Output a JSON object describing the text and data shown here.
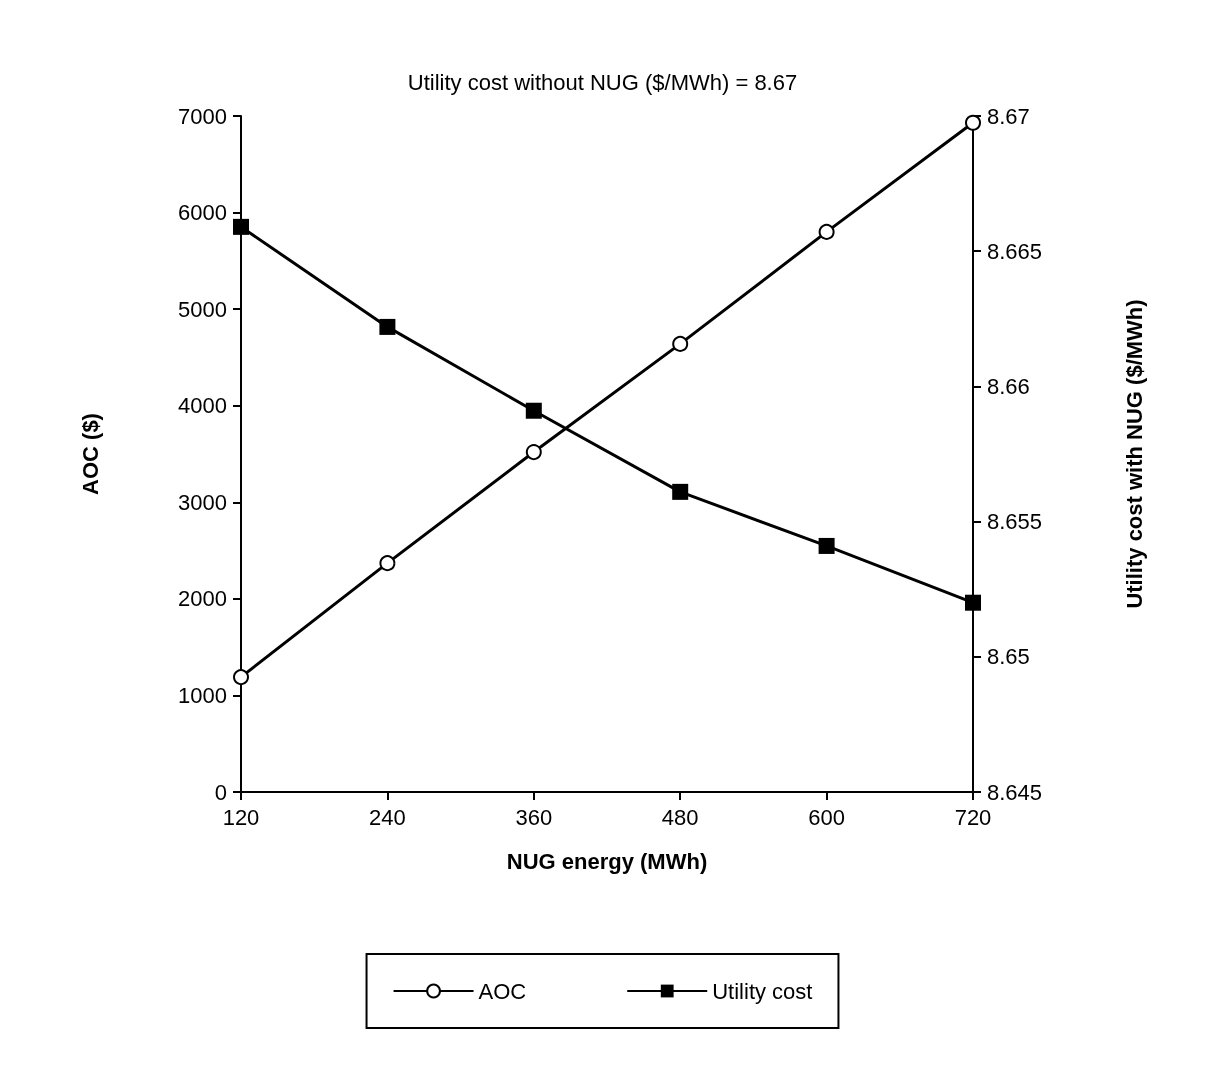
{
  "chart_data": {
    "type": "line",
    "title": "Utility cost without NUG ($/MWh) = 8.67",
    "xlabel": "NUG energy (MWh)",
    "ylabel": "AOC ($)",
    "y2label": "Utility cost with NUG ($/MWh)",
    "x": [
      120,
      240,
      360,
      480,
      600,
      720
    ],
    "xlim": [
      120,
      720
    ],
    "xticks": [
      120,
      240,
      360,
      480,
      600,
      720
    ],
    "ylim": [
      0,
      7000
    ],
    "yticks": [
      0,
      1000,
      2000,
      3000,
      4000,
      5000,
      6000,
      7000
    ],
    "y2lim": [
      8.645,
      8.67
    ],
    "y2ticks": [
      8.645,
      8.65,
      8.655,
      8.66,
      8.665,
      8.67
    ],
    "series": [
      {
        "name": "AOC",
        "color": "#000000",
        "marker": "circle",
        "values": [
          1190,
          2370,
          3520,
          4640,
          5800,
          6930
        ]
      },
      {
        "name": "Utility cost",
        "color": "#000000",
        "marker": "square",
        "axis": "y2",
        "values": [
          8.6659,
          8.6622,
          8.6591,
          8.6561,
          8.6541,
          8.652
        ]
      }
    ],
    "grid": false,
    "legend": "bottom",
    "line_style": "solid"
  }
}
